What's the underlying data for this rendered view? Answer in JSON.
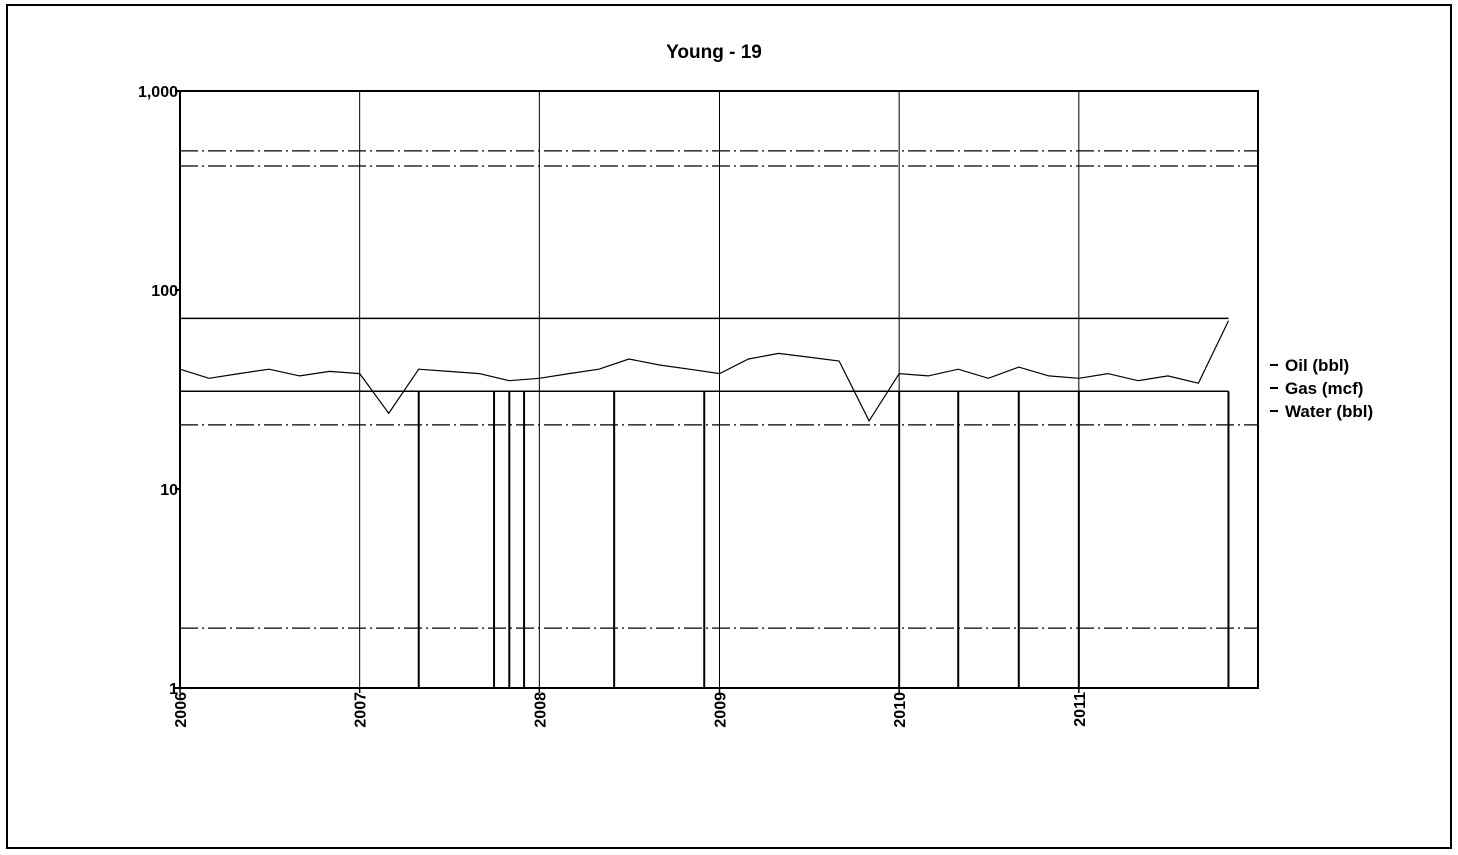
{
  "chart_data": {
    "type": "line",
    "title": "Young - 19",
    "xlabel": "",
    "ylabel": "",
    "y_scale": "log",
    "ylim": [
      1,
      1000
    ],
    "y_ticks": [
      {
        "value": 1,
        "label": "1"
      },
      {
        "value": 10,
        "label": "10"
      },
      {
        "value": 100,
        "label": "100"
      },
      {
        "value": 1000,
        "label": "1,000"
      }
    ],
    "xlim": [
      "2006-01-01",
      "2011-12-31"
    ],
    "x_ticks": [
      "2006",
      "2007",
      "2008",
      "2009",
      "2010",
      "2011"
    ],
    "grid": true,
    "legend": "right",
    "series": [
      {
        "name": "Oil (bbl)",
        "x": [
          "2006-01",
          "2006-03",
          "2006-05",
          "2006-07",
          "2006-09",
          "2006-11",
          "2007-01",
          "2007-03",
          "2007-05",
          "2007-07",
          "2007-09",
          "2007-11",
          "2008-01",
          "2008-03",
          "2008-05",
          "2008-07",
          "2008-09",
          "2008-11",
          "2009-01",
          "2009-03",
          "2009-05",
          "2009-07",
          "2009-09",
          "2009-11",
          "2010-01",
          "2010-03",
          "2010-05",
          "2010-07",
          "2010-09",
          "2010-11",
          "2011-01",
          "2011-03",
          "2011-05",
          "2011-07",
          "2011-09",
          "2011-11"
        ],
        "y": [
          40,
          36,
          38,
          40,
          37,
          39,
          38,
          24,
          40,
          39,
          38,
          35,
          36,
          38,
          40,
          45,
          42,
          40,
          38,
          45,
          48,
          46,
          44,
          22,
          38,
          37,
          40,
          36,
          41,
          37,
          36,
          38,
          35,
          37,
          34,
          70
        ]
      },
      {
        "name": "Gas (mcf)",
        "x": [
          "2006-01",
          "2006-03",
          "2006-05",
          "2006-07",
          "2006-09",
          "2006-11",
          "2007-01",
          "2007-03",
          "2007-05",
          "2007-07",
          "2007-09",
          "2007-11",
          "2008-01",
          "2008-03",
          "2008-05",
          "2008-07",
          "2008-09",
          "2008-11",
          "2009-01",
          "2009-03",
          "2009-05",
          "2009-07",
          "2009-09",
          "2009-11",
          "2010-01",
          "2010-03",
          "2010-05",
          "2010-07",
          "2010-09",
          "2010-11",
          "2011-01",
          "2011-03",
          "2011-05",
          "2011-07",
          "2011-09",
          "2011-11"
        ],
        "y": [
          31,
          31,
          31,
          31,
          31,
          31,
          31,
          31,
          31,
          31,
          31,
          31,
          31,
          31,
          31,
          31,
          31,
          31,
          31,
          31,
          31,
          31,
          31,
          31,
          31,
          31,
          31,
          31,
          31,
          31,
          31,
          31,
          31,
          31,
          31,
          31
        ]
      },
      {
        "name": "Water (bbl)",
        "x": [
          "2006-01",
          "2006-03",
          "2006-05",
          "2006-07",
          "2006-09",
          "2006-11",
          "2007-01",
          "2007-03",
          "2007-05",
          "2007-07",
          "2007-09",
          "2007-11",
          "2008-01",
          "2008-03",
          "2008-05",
          "2008-07",
          "2008-09",
          "2008-11",
          "2009-01",
          "2009-03",
          "2009-05",
          "2009-07",
          "2009-09",
          "2009-11",
          "2010-01",
          "2010-03",
          "2010-05",
          "2010-07",
          "2010-09",
          "2010-11",
          "2011-01",
          "2011-03",
          "2011-05",
          "2011-07",
          "2011-09",
          "2011-11"
        ],
        "y": [
          72,
          72,
          72,
          72,
          72,
          72,
          72,
          72,
          72,
          72,
          72,
          72,
          72,
          72,
          72,
          72,
          72,
          72,
          72,
          72,
          72,
          72,
          72,
          72,
          72,
          72,
          72,
          72,
          72,
          72,
          72,
          72,
          72,
          72,
          72,
          72
        ]
      }
    ],
    "drop_events": [
      "2007-05",
      "2007-10",
      "2007-11",
      "2007-12",
      "2008-06",
      "2008-12",
      "2010-01",
      "2010-05",
      "2010-09",
      "2011-01",
      "2011-11"
    ],
    "reference_levels": [
      500,
      420,
      21,
      2
    ]
  },
  "colors": {
    "line": "#000000",
    "grid": "#000000",
    "background": "#ffffff"
  }
}
